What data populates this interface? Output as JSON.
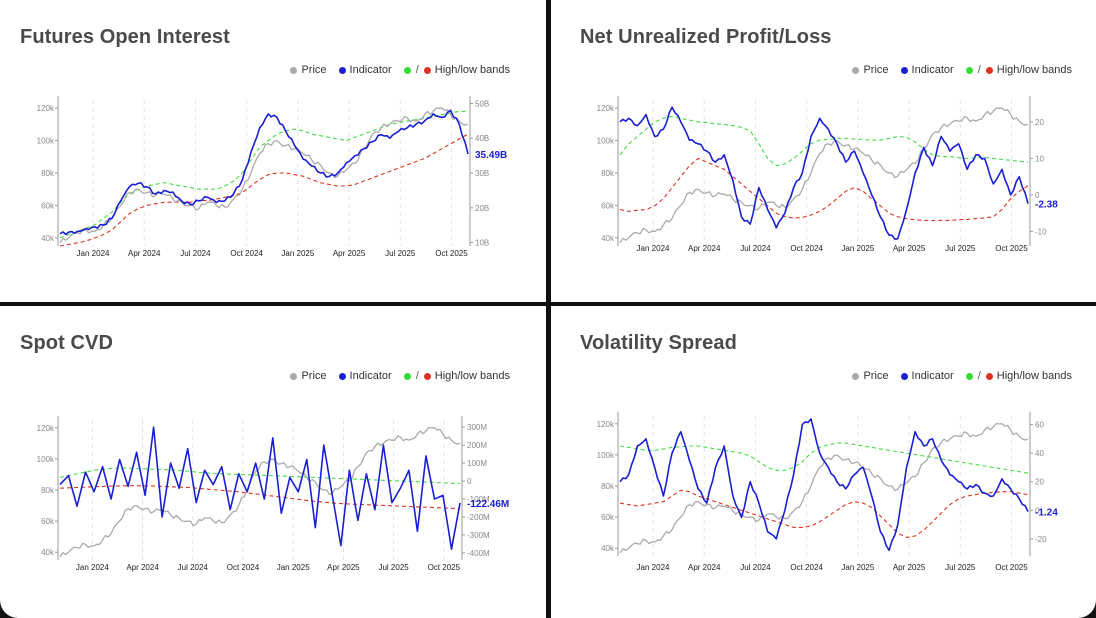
{
  "legend": {
    "price": "Price",
    "indicator": "Indicator",
    "bands": "High/low bands"
  },
  "colors": {
    "price": "#aaaaaa",
    "indicator": "#1a1fd4",
    "high_band": "#44dd44",
    "low_band": "#dd3322",
    "background": "#ffffff"
  },
  "chart_data": [
    {
      "type": "line",
      "title": "Futures Open Interest",
      "x_ticks": [
        "Jan 2024",
        "Apr 2024",
        "Jul 2024",
        "Oct 2024",
        "Jan 2025",
        "Apr 2025",
        "Jul 2025",
        "Oct 2025"
      ],
      "x_range": [
        "2023-11",
        "2025-11"
      ],
      "left_axis": {
        "ticks": [
          "40k",
          "60k",
          "80k",
          "100k",
          "120k"
        ],
        "range": [
          35,
          125
        ]
      },
      "right_axis": {
        "ticks": [
          "10B",
          "20B",
          "30B",
          "40B",
          "50B"
        ],
        "range": [
          9,
          51
        ]
      },
      "last_value_label": "35.49B",
      "series": [
        {
          "name": "Price",
          "axis": "left",
          "values": [
            37,
            40,
            43,
            45,
            44,
            48,
            52,
            60,
            68,
            70,
            68,
            66,
            67,
            64,
            62,
            60,
            58,
            62,
            60,
            59,
            64,
            70,
            80,
            92,
            98,
            100,
            97,
            95,
            92,
            88,
            85,
            80,
            78,
            82,
            86,
            95,
            104,
            108,
            110,
            112,
            114,
            112,
            116,
            118,
            120,
            116,
            112,
            110
          ]
        },
        {
          "name": "Indicator",
          "axis": "right",
          "values": [
            12.5,
            13,
            13.2,
            14,
            14.5,
            15,
            17,
            22,
            26,
            27,
            26,
            24,
            25,
            24.5,
            22,
            21,
            22,
            23,
            21.5,
            22,
            24,
            28,
            36,
            43,
            47,
            46,
            42,
            38,
            34,
            32,
            30,
            29,
            30,
            33,
            35,
            37,
            39,
            41,
            40,
            42,
            43,
            44,
            45,
            47,
            46,
            48,
            44,
            35.5
          ]
        },
        {
          "name": "High band",
          "axis": "left",
          "values": [
            40,
            42,
            44,
            46,
            48,
            52,
            56,
            62,
            67,
            70,
            72,
            73,
            74,
            73,
            72,
            71,
            70,
            70,
            70,
            72,
            75,
            80,
            88,
            96,
            100,
            104,
            106,
            107,
            106,
            104,
            103,
            102,
            101,
            100,
            102,
            104,
            106,
            108,
            110,
            111,
            112,
            113,
            114,
            115,
            116,
            117,
            118,
            118
          ]
        },
        {
          "name": "Low band",
          "axis": "left",
          "values": [
            35,
            36,
            37,
            38,
            40,
            42,
            45,
            50,
            55,
            58,
            60,
            61,
            62,
            62,
            62,
            62,
            63,
            63,
            64,
            65,
            66,
            68,
            72,
            76,
            79,
            80,
            80,
            79,
            78,
            76,
            74,
            73,
            72,
            72,
            73,
            75,
            77,
            79,
            81,
            83,
            85,
            87,
            89,
            92,
            95,
            98,
            101,
            104
          ]
        }
      ]
    },
    {
      "type": "line",
      "title": "Net Unrealized Profit/Loss",
      "x_ticks": [
        "Jan 2024",
        "Apr 2024",
        "Jul 2024",
        "Oct 2024",
        "Jan 2025",
        "Apr 2025",
        "Jul 2025",
        "Oct 2025"
      ],
      "x_range": [
        "2023-11",
        "2025-11"
      ],
      "left_axis": {
        "ticks": [
          "40k",
          "60k",
          "80k",
          "100k",
          "120k"
        ],
        "range": [
          35,
          125
        ]
      },
      "right_axis": {
        "ticks": [
          "-10",
          "0",
          "10",
          "20"
        ],
        "range": [
          -14,
          26
        ]
      },
      "last_value_label": "-2.38",
      "series": [
        {
          "name": "Price",
          "axis": "left",
          "values": [
            37,
            40,
            43,
            45,
            44,
            48,
            52,
            60,
            68,
            70,
            68,
            66,
            67,
            64,
            62,
            60,
            58,
            62,
            60,
            59,
            64,
            70,
            80,
            92,
            98,
            100,
            97,
            95,
            92,
            88,
            85,
            80,
            78,
            82,
            86,
            95,
            104,
            108,
            110,
            112,
            114,
            112,
            116,
            118,
            120,
            116,
            112,
            110
          ]
        },
        {
          "name": "Indicator",
          "axis": "right",
          "values": [
            20,
            21,
            19,
            22,
            16,
            18,
            24,
            20,
            15,
            14,
            12,
            9,
            11,
            4,
            -6,
            -8,
            2,
            -4,
            -9,
            -5,
            2,
            6,
            16,
            21,
            18,
            14,
            9,
            12,
            6,
            0,
            -6,
            -11,
            -12,
            -4,
            6,
            13,
            8,
            16,
            12,
            14,
            7,
            11,
            10,
            3,
            7,
            0,
            5,
            -2.4
          ]
        },
        {
          "name": "High band",
          "axis": "right",
          "values": [
            11,
            14,
            16,
            18,
            20,
            21,
            21.5,
            21,
            20.5,
            20,
            19.8,
            19.5,
            19.3,
            19,
            18.5,
            17.5,
            14,
            10,
            8,
            8.5,
            10,
            12,
            14,
            15,
            15.2,
            15.5,
            15.5,
            15.3,
            15.2,
            15,
            15,
            15.5,
            16,
            15.8,
            14.5,
            12.5,
            11,
            10.5,
            10.5,
            10.2,
            10,
            10.2,
            10.3,
            10,
            9.7,
            9.5,
            9.2,
            9
          ]
        },
        {
          "name": "Low band",
          "axis": "right",
          "values": [
            -4,
            -4.5,
            -4.2,
            -4,
            -3,
            -1,
            2,
            5,
            8,
            10,
            9,
            8,
            7,
            5,
            3,
            1,
            -1,
            -3,
            -5,
            -6,
            -6.3,
            -6.2,
            -5.5,
            -4.5,
            -3,
            -1,
            1,
            2,
            1,
            -1,
            -3,
            -5,
            -6,
            -6.5,
            -6.8,
            -7,
            -7,
            -7,
            -7,
            -6.8,
            -6.7,
            -6.5,
            -6.3,
            -6,
            -4,
            -1,
            1,
            2.5
          ]
        }
      ]
    },
    {
      "type": "line",
      "title": "Spot CVD",
      "x_ticks": [
        "Jan 2024",
        "Apr 2024",
        "Jul 2024",
        "Oct 2024",
        "Jan 2025",
        "Apr 2025",
        "Jul 2025",
        "Oct 2025"
      ],
      "x_range": [
        "2023-11",
        "2025-11"
      ],
      "left_axis": {
        "ticks": [
          "40k",
          "60k",
          "80k",
          "100k",
          "120k"
        ],
        "range": [
          35,
          125
        ]
      },
      "right_axis": {
        "ticks": [
          "-400M",
          "-300M",
          "-200M",
          "-100M",
          "0",
          "100M",
          "200M",
          "300M"
        ],
        "range": [
          -440,
          340
        ]
      },
      "last_value_label": "-122.46M",
      "series": [
        {
          "name": "Price",
          "axis": "left",
          "values": [
            37,
            40,
            43,
            45,
            44,
            48,
            52,
            60,
            68,
            70,
            68,
            66,
            67,
            64,
            62,
            60,
            58,
            62,
            60,
            59,
            64,
            70,
            80,
            92,
            98,
            100,
            97,
            95,
            92,
            88,
            85,
            80,
            78,
            82,
            86,
            95,
            104,
            108,
            110,
            112,
            114,
            112,
            116,
            118,
            120,
            116,
            112,
            110
          ]
        },
        {
          "name": "Indicator",
          "axis": "right",
          "values": [
            -20,
            30,
            -140,
            50,
            -60,
            80,
            -100,
            120,
            -30,
            160,
            -80,
            300,
            -200,
            100,
            -40,
            180,
            -120,
            60,
            -20,
            80,
            -160,
            40,
            -60,
            100,
            -100,
            240,
            -180,
            20,
            -60,
            120,
            -260,
            200,
            -80,
            -360,
            60,
            -220,
            40,
            -160,
            200,
            -120,
            -40,
            60,
            -280,
            140,
            -100,
            -80,
            -380,
            -122
          ]
        },
        {
          "name": "High band",
          "axis": "right",
          "values": [
            20,
            30,
            40,
            50,
            60,
            65,
            70,
            72,
            72,
            70,
            68,
            66,
            64,
            62,
            60,
            55,
            50,
            45,
            42,
            40,
            38,
            36,
            35,
            33,
            32,
            30,
            28,
            26,
            24,
            22,
            20,
            18,
            16,
            14,
            12,
            10,
            8,
            6,
            4,
            2,
            0,
            -2,
            -4,
            -6,
            -8,
            -10,
            -12,
            -14
          ]
        },
        {
          "name": "Low band",
          "axis": "right",
          "values": [
            -40,
            -38,
            -36,
            -34,
            -32,
            -30,
            -28,
            -27,
            -26,
            -26,
            -27,
            -28,
            -30,
            -32,
            -34,
            -36,
            -40,
            -44,
            -48,
            -52,
            -56,
            -60,
            -66,
            -72,
            -78,
            -84,
            -90,
            -96,
            -102,
            -108,
            -114,
            -118,
            -122,
            -126,
            -128,
            -130,
            -132,
            -134,
            -136,
            -138,
            -140,
            -142,
            -144,
            -146,
            -148,
            -150,
            -152,
            -154
          ]
        }
      ]
    },
    {
      "type": "line",
      "title": "Volatility Spread",
      "x_ticks": [
        "Jan 2024",
        "Apr 2024",
        "Jul 2024",
        "Oct 2024",
        "Jan 2025",
        "Apr 2025",
        "Jul 2025",
        "Oct 2025"
      ],
      "x_range": [
        "2023-11",
        "2025-11"
      ],
      "left_axis": {
        "ticks": [
          "40k",
          "60k",
          "80k",
          "100k",
          "120k"
        ],
        "range": [
          35,
          125
        ]
      },
      "right_axis": {
        "ticks": [
          "-20",
          "0",
          "20",
          "40",
          "60"
        ],
        "range": [
          -32,
          66
        ]
      },
      "last_value_label": "-1.24",
      "series": [
        {
          "name": "Price",
          "axis": "left",
          "values": [
            37,
            40,
            43,
            45,
            44,
            48,
            52,
            60,
            68,
            70,
            68,
            66,
            67,
            64,
            62,
            60,
            58,
            62,
            60,
            59,
            64,
            70,
            80,
            92,
            98,
            100,
            97,
            95,
            92,
            88,
            85,
            80,
            78,
            82,
            86,
            95,
            104,
            108,
            110,
            112,
            114,
            112,
            116,
            118,
            120,
            116,
            112,
            110
          ]
        },
        {
          "name": "Indicator",
          "axis": "right",
          "values": [
            20,
            25,
            45,
            50,
            30,
            10,
            40,
            55,
            35,
            15,
            5,
            30,
            45,
            10,
            -5,
            20,
            5,
            -15,
            -20,
            0,
            25,
            60,
            64,
            40,
            30,
            20,
            15,
            25,
            30,
            10,
            -15,
            -28,
            -10,
            30,
            55,
            45,
            50,
            35,
            25,
            20,
            15,
            18,
            12,
            10,
            22,
            15,
            8,
            -1
          ]
        },
        {
          "name": "High band",
          "axis": "right",
          "values": [
            45,
            44,
            43,
            42,
            42,
            43,
            44,
            44.5,
            45,
            45,
            44,
            43,
            42,
            41,
            40,
            38,
            34,
            30,
            28,
            28,
            30,
            34,
            40,
            44,
            46,
            47,
            47,
            46,
            45,
            44,
            43,
            42,
            41,
            40,
            39,
            38,
            37,
            36,
            35,
            34,
            33,
            32,
            31,
            30,
            29,
            28,
            27,
            26
          ]
        },
        {
          "name": "Low band",
          "axis": "right",
          "values": [
            5,
            4,
            3,
            4,
            5,
            6,
            10,
            14,
            13,
            10,
            8,
            6,
            4,
            2,
            0,
            -2,
            -4,
            -6,
            -8,
            -10,
            -12,
            -12,
            -11,
            -8,
            -4,
            0,
            4,
            6,
            5,
            2,
            -4,
            -10,
            -16,
            -19,
            -18,
            -14,
            -8,
            -2,
            4,
            8,
            10,
            11,
            12,
            12.5,
            13,
            13,
            12,
            11
          ]
        }
      ]
    }
  ]
}
